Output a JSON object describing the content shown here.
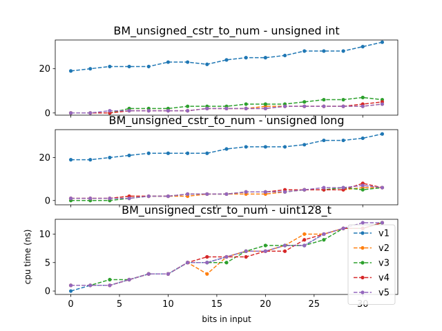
{
  "chart_data": [
    {
      "type": "line",
      "title": "BM_unsigned_cstr_to_num - unsigned int",
      "xlabel": "",
      "ylabel": "",
      "x": [
        0,
        2,
        4,
        6,
        8,
        10,
        12,
        14,
        16,
        18,
        20,
        22,
        24,
        26,
        28,
        30,
        32
      ],
      "xlim": [
        -1.6,
        33.6
      ],
      "ylim": [
        -1,
        33
      ],
      "yticks": [
        0,
        20
      ],
      "xticks": [
        0,
        5,
        10,
        15,
        20,
        25,
        30
      ],
      "show_xtick_labels": false,
      "series": [
        {
          "color": "#1f77b4",
          "values": [
            19,
            20,
            21,
            21,
            21,
            23,
            23,
            22,
            24,
            25,
            25,
            26,
            28,
            28,
            28,
            30,
            32
          ]
        },
        {
          "color": "#ff7f0e",
          "values": [
            0,
            0,
            0,
            1,
            1,
            1,
            1,
            2,
            2,
            2,
            3,
            3,
            3,
            3,
            3,
            3,
            4
          ]
        },
        {
          "color": "#2ca02c",
          "values": [
            0,
            0,
            0,
            2,
            2,
            2,
            3,
            3,
            3,
            4,
            4,
            4,
            5,
            6,
            6,
            7,
            6
          ]
        },
        {
          "color": "#d62728",
          "values": [
            0,
            0,
            0,
            1,
            1,
            1,
            1,
            2,
            2,
            2,
            2,
            3,
            3,
            3,
            3,
            4,
            5
          ]
        },
        {
          "color": "#9467bd",
          "values": [
            0,
            0,
            1,
            1,
            1,
            1,
            1,
            2,
            2,
            2,
            2,
            3,
            3,
            3,
            3,
            3,
            4
          ]
        }
      ]
    },
    {
      "type": "line",
      "title": "BM_unsigned_cstr_to_num - unsigned long",
      "xlabel": "",
      "ylabel": "",
      "x": [
        0,
        2,
        4,
        6,
        8,
        10,
        12,
        14,
        16,
        18,
        20,
        22,
        24,
        26,
        28,
        30,
        32
      ],
      "xlim": [
        -1.6,
        33.6
      ],
      "ylim": [
        -2,
        33
      ],
      "yticks": [
        0,
        20
      ],
      "xticks": [
        0,
        5,
        10,
        15,
        20,
        25,
        30
      ],
      "show_xtick_labels": false,
      "series": [
        {
          "color": "#1f77b4",
          "values": [
            19,
            19,
            20,
            21,
            22,
            22,
            22,
            22,
            24,
            25,
            25,
            25,
            26,
            28,
            28,
            29,
            31
          ]
        },
        {
          "color": "#ff7f0e",
          "values": [
            1,
            1,
            1,
            2,
            2,
            2,
            2,
            3,
            3,
            3,
            3,
            4,
            5,
            5,
            5,
            6,
            6
          ]
        },
        {
          "color": "#2ca02c",
          "values": [
            0,
            0,
            0,
            1,
            2,
            2,
            3,
            3,
            3,
            4,
            4,
            4,
            5,
            5,
            6,
            5,
            6
          ]
        },
        {
          "color": "#d62728",
          "values": [
            1,
            1,
            1,
            2,
            2,
            2,
            3,
            3,
            3,
            4,
            4,
            5,
            5,
            5,
            5,
            8,
            6
          ]
        },
        {
          "color": "#9467bd",
          "values": [
            1,
            1,
            1,
            1,
            2,
            2,
            3,
            3,
            3,
            4,
            4,
            4,
            5,
            6,
            6,
            7,
            6
          ]
        }
      ]
    },
    {
      "type": "line",
      "title": "BM_unsigned_cstr_to_num - uint128_t",
      "xlabel": "bits in input",
      "ylabel": "cpu time (ns)",
      "x": [
        0,
        2,
        4,
        6,
        8,
        10,
        12,
        14,
        16,
        18,
        20,
        22,
        24,
        26,
        28,
        30,
        32
      ],
      "xlim": [
        -1.6,
        33.6
      ],
      "ylim": [
        -0.6,
        12.6
      ],
      "yticks": [
        0,
        5,
        10
      ],
      "xticks": [
        0,
        5,
        10,
        15,
        20,
        25,
        30
      ],
      "show_xtick_labels": true,
      "legend_position": "right",
      "series": [
        {
          "name": "v1",
          "color": "#1f77b4",
          "values": [
            0,
            1,
            1,
            2,
            3,
            3,
            5,
            5,
            6,
            7,
            7,
            8,
            8,
            10,
            11,
            11,
            12
          ]
        },
        {
          "name": "v2",
          "color": "#ff7f0e",
          "values": [
            1,
            1,
            1,
            2,
            3,
            3,
            5,
            3,
            6,
            7,
            7,
            8,
            10,
            10,
            11,
            11,
            12
          ]
        },
        {
          "name": "v3",
          "color": "#2ca02c",
          "values": [
            1,
            1,
            2,
            2,
            3,
            3,
            5,
            5,
            5,
            7,
            8,
            8,
            8,
            9,
            11,
            11,
            12
          ]
        },
        {
          "name": "v4",
          "color": "#d62728",
          "values": [
            1,
            1,
            1,
            2,
            3,
            3,
            5,
            6,
            6,
            6,
            7,
            7,
            9,
            10,
            11,
            11,
            12
          ]
        },
        {
          "name": "v5",
          "color": "#9467bd",
          "values": [
            1,
            1,
            1,
            2,
            3,
            3,
            5,
            5,
            6,
            7,
            7,
            8,
            8,
            10,
            11,
            12,
            12
          ]
        }
      ]
    }
  ]
}
